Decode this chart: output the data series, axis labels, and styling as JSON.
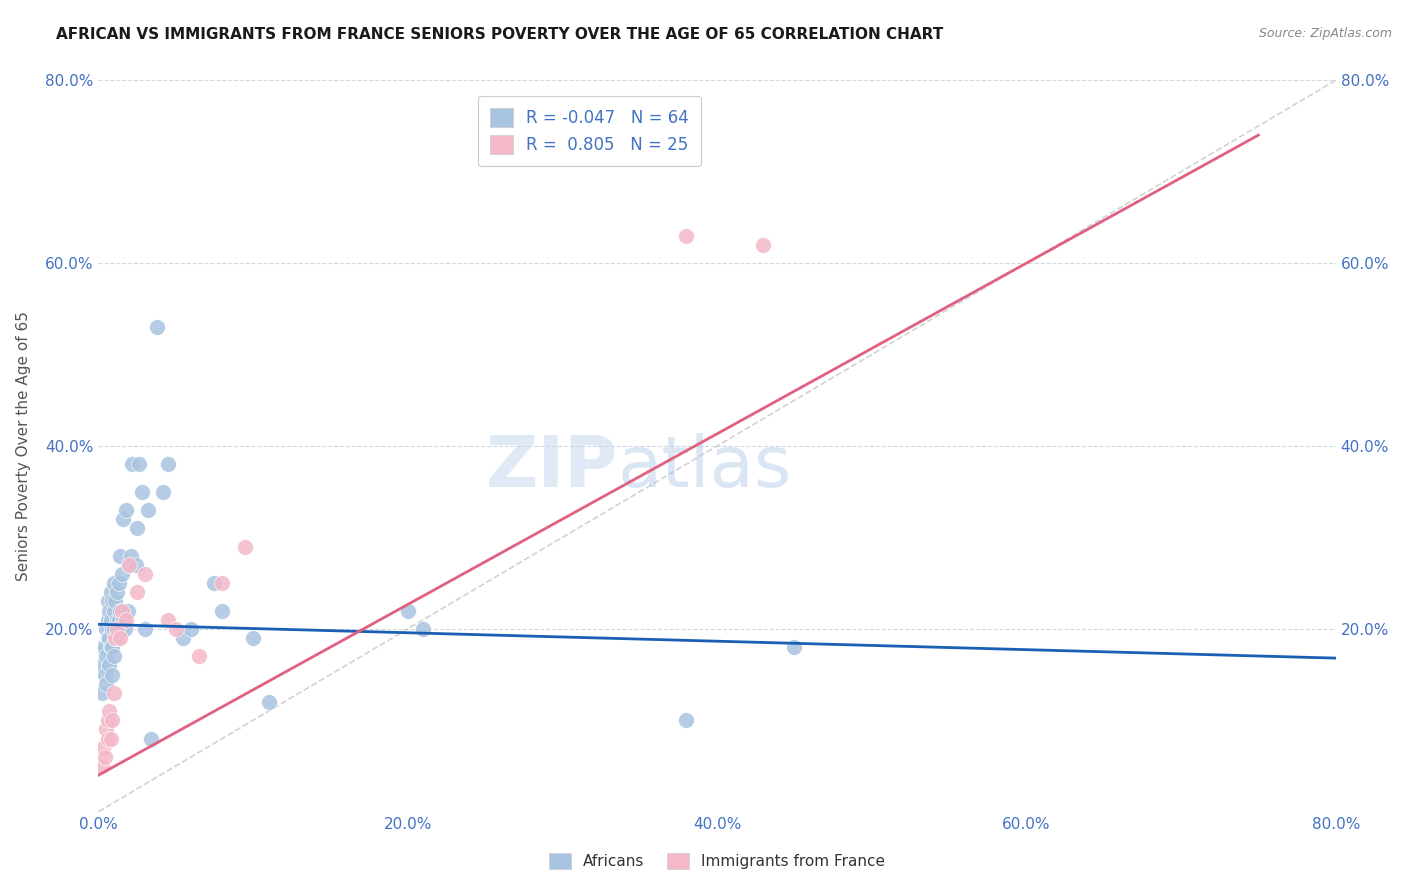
{
  "title": "AFRICAN VS IMMIGRANTS FROM FRANCE SENIORS POVERTY OVER THE AGE OF 65 CORRELATION CHART",
  "source": "Source: ZipAtlas.com",
  "ylabel": "Seniors Poverty Over the Age of 65",
  "xlim": [
    0.0,
    0.8
  ],
  "ylim": [
    0.0,
    0.8
  ],
  "xtick_labels": [
    "0.0%",
    "20.0%",
    "40.0%",
    "60.0%",
    "80.0%"
  ],
  "xtick_vals": [
    0.0,
    0.2,
    0.4,
    0.6,
    0.8
  ],
  "ytick_labels": [
    "20.0%",
    "40.0%",
    "60.0%",
    "80.0%"
  ],
  "ytick_vals": [
    0.2,
    0.4,
    0.6,
    0.8
  ],
  "africans_color": "#a8c4e0",
  "france_color": "#f4b8c8",
  "trendline_african_color": "#1a5fb4",
  "trendline_france_color": "#e06080",
  "diagonal_color": "#c0c0c0",
  "legend_african_label": "R = -0.047   N = 64",
  "legend_france_label": "R =  0.805   N = 25",
  "legend_bottom_african": "Africans",
  "legend_bottom_france": "Immigrants from France",
  "watermark_zip": "ZIP",
  "watermark_atlas": "atlas",
  "african_trend_x": [
    0.0,
    0.8
  ],
  "african_trend_y": [
    0.205,
    0.168
  ],
  "france_trend_x": [
    0.0,
    0.75
  ],
  "france_trend_y": [
    0.04,
    0.74
  ],
  "africans_x": [
    0.002,
    0.003,
    0.003,
    0.004,
    0.004,
    0.005,
    0.005,
    0.005,
    0.006,
    0.006,
    0.006,
    0.007,
    0.007,
    0.007,
    0.008,
    0.008,
    0.008,
    0.009,
    0.009,
    0.009,
    0.009,
    0.01,
    0.01,
    0.01,
    0.01,
    0.011,
    0.011,
    0.012,
    0.012,
    0.012,
    0.013,
    0.013,
    0.014,
    0.014,
    0.015,
    0.015,
    0.016,
    0.016,
    0.017,
    0.018,
    0.019,
    0.02,
    0.021,
    0.022,
    0.024,
    0.025,
    0.026,
    0.028,
    0.03,
    0.032,
    0.034,
    0.038,
    0.042,
    0.045,
    0.055,
    0.06,
    0.075,
    0.08,
    0.1,
    0.11,
    0.2,
    0.21,
    0.38,
    0.45
  ],
  "africans_y": [
    0.13,
    0.16,
    0.18,
    0.15,
    0.18,
    0.2,
    0.14,
    0.17,
    0.19,
    0.21,
    0.23,
    0.16,
    0.19,
    0.22,
    0.18,
    0.21,
    0.24,
    0.15,
    0.18,
    0.2,
    0.23,
    0.17,
    0.2,
    0.22,
    0.25,
    0.19,
    0.23,
    0.19,
    0.21,
    0.24,
    0.21,
    0.25,
    0.22,
    0.28,
    0.2,
    0.26,
    0.21,
    0.32,
    0.2,
    0.33,
    0.22,
    0.27,
    0.28,
    0.38,
    0.27,
    0.31,
    0.38,
    0.35,
    0.2,
    0.33,
    0.08,
    0.53,
    0.35,
    0.38,
    0.19,
    0.2,
    0.25,
    0.22,
    0.19,
    0.12,
    0.22,
    0.2,
    0.1,
    0.18
  ],
  "france_x": [
    0.002,
    0.003,
    0.004,
    0.005,
    0.006,
    0.006,
    0.007,
    0.008,
    0.009,
    0.01,
    0.011,
    0.012,
    0.014,
    0.015,
    0.018,
    0.02,
    0.025,
    0.03,
    0.045,
    0.05,
    0.065,
    0.08,
    0.095,
    0.38,
    0.43
  ],
  "france_y": [
    0.05,
    0.07,
    0.06,
    0.09,
    0.08,
    0.1,
    0.11,
    0.08,
    0.1,
    0.13,
    0.19,
    0.2,
    0.19,
    0.22,
    0.21,
    0.27,
    0.24,
    0.26,
    0.21,
    0.2,
    0.17,
    0.25,
    0.29,
    0.63,
    0.62
  ]
}
